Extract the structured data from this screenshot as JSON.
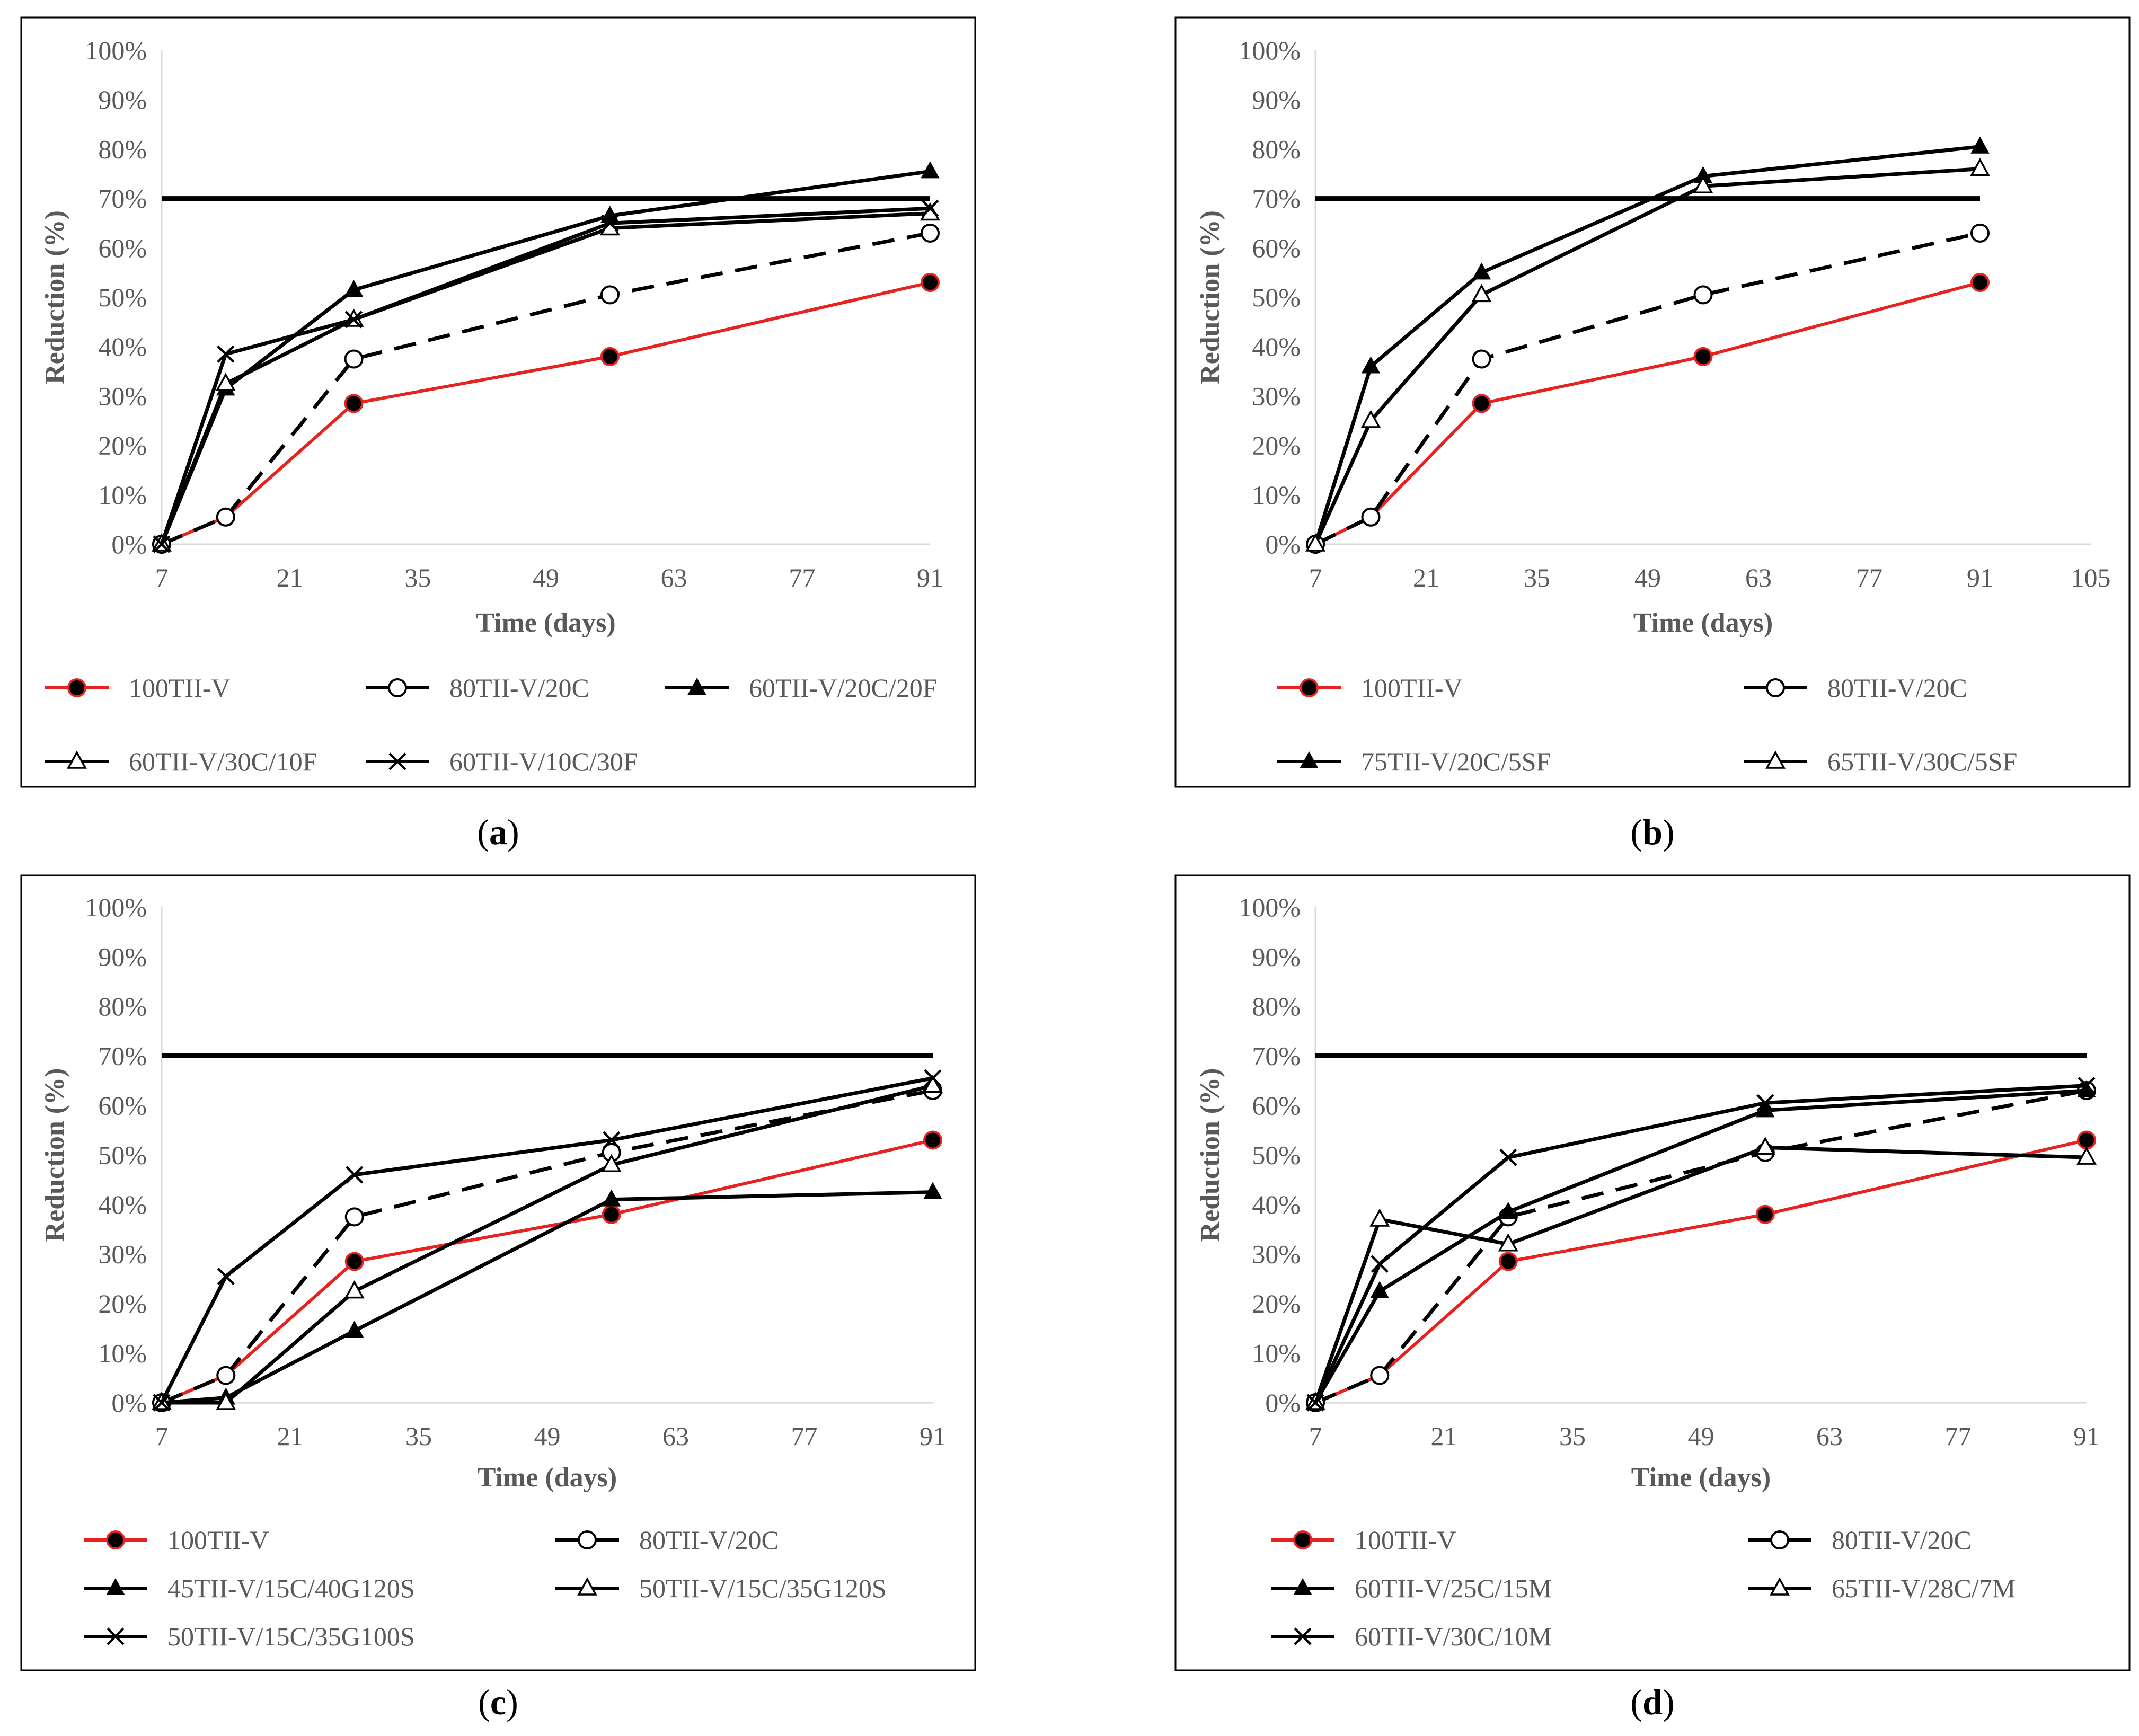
{
  "colors": {
    "red": "#e8231f",
    "black": "#000000",
    "axis_text": "#595959",
    "axis_line": "#d9d9d9",
    "frame": "#000000"
  },
  "chart_data": [
    {
      "id": "a",
      "type": "line",
      "caption_letter": "a",
      "xlabel": "Time (days)",
      "ylabel": "Reduction (%)",
      "xlim": [
        7,
        91
      ],
      "ylim": [
        0,
        100
      ],
      "xticks": [
        "7",
        "21",
        "35",
        "49",
        "63",
        "77",
        "91"
      ],
      "yticks": [
        "0%",
        "10%",
        "20%",
        "30%",
        "40%",
        "50%",
        "60%",
        "70%",
        "80%",
        "90%",
        "100%"
      ],
      "threshold": {
        "y": 70,
        "x": [
          7,
          91
        ]
      },
      "x": [
        7,
        14,
        28,
        56,
        91
      ],
      "series": [
        {
          "name": "100TII-V",
          "values": [
            0,
            5.5,
            28.5,
            38,
            53
          ],
          "color": "red",
          "marker": "filled-circle",
          "dash": false
        },
        {
          "name": "80TII-V/20C",
          "values": [
            0,
            5.5,
            37.5,
            50.5,
            63
          ],
          "color": "black",
          "marker": "open-circle",
          "dash": true
        },
        {
          "name": "60TII-V/20C/20F",
          "values": [
            0,
            31.5,
            51.5,
            66.5,
            75.5
          ],
          "color": "black",
          "marker": "filled-triangle",
          "dash": false
        },
        {
          "name": "60TII-V/30C/10F",
          "values": [
            0,
            32.5,
            45.5,
            64,
            67
          ],
          "color": "black",
          "marker": "open-triangle",
          "dash": false
        },
        {
          "name": "60TII-V/10C/30F",
          "values": [
            0,
            38.5,
            45.5,
            65,
            68
          ],
          "color": "black",
          "marker": "cross",
          "dash": false
        }
      ]
    },
    {
      "id": "b",
      "type": "line",
      "caption_letter": "b",
      "xlabel": "Time (days)",
      "ylabel": "Reduction (%)",
      "xlim": [
        7,
        105
      ],
      "ylim": [
        0,
        100
      ],
      "xticks": [
        "7",
        "21",
        "35",
        "49",
        "63",
        "77",
        "91",
        "105"
      ],
      "yticks": [
        "0%",
        "10%",
        "20%",
        "30%",
        "40%",
        "50%",
        "60%",
        "70%",
        "80%",
        "90%",
        "100%"
      ],
      "threshold": {
        "y": 70,
        "x": [
          7,
          91
        ]
      },
      "x": [
        7,
        14,
        28,
        56,
        91
      ],
      "series": [
        {
          "name": "100TII-V",
          "values": [
            0,
            5.5,
            28.5,
            38,
            53
          ],
          "color": "red",
          "marker": "filled-circle",
          "dash": false
        },
        {
          "name": "80TII-V/20C",
          "values": [
            0,
            5.5,
            37.5,
            50.5,
            63
          ],
          "color": "black",
          "marker": "open-circle",
          "dash": true
        },
        {
          "name": "75TII-V/20C/5SF",
          "values": [
            0,
            36,
            55,
            74.5,
            80.5
          ],
          "color": "black",
          "marker": "filled-triangle",
          "dash": false
        },
        {
          "name": "65TII-V/30C/5SF",
          "values": [
            0,
            25,
            50.5,
            72.5,
            76
          ],
          "color": "black",
          "marker": "open-triangle",
          "dash": false
        }
      ]
    },
    {
      "id": "c",
      "type": "line",
      "caption_letter": "c",
      "xlabel": "Time (days)",
      "ylabel": "Reduction (%)",
      "xlim": [
        7,
        91
      ],
      "ylim": [
        0,
        100
      ],
      "xticks": [
        "7",
        "21",
        "35",
        "49",
        "63",
        "77",
        "91"
      ],
      "yticks": [
        "0%",
        "10%",
        "20%",
        "30%",
        "40%",
        "50%",
        "60%",
        "70%",
        "80%",
        "90%",
        "100%"
      ],
      "threshold": {
        "y": 70,
        "x": [
          7,
          91
        ]
      },
      "x": [
        7,
        14,
        28,
        56,
        91
      ],
      "series": [
        {
          "name": "100TII-V",
          "values": [
            0,
            5.5,
            28.5,
            38,
            53
          ],
          "color": "red",
          "marker": "filled-circle",
          "dash": false
        },
        {
          "name": "80TII-V/20C",
          "values": [
            0,
            5.5,
            37.5,
            50.5,
            63
          ],
          "color": "black",
          "marker": "open-circle",
          "dash": true
        },
        {
          "name": "45TII-V/15C/40G120S",
          "values": [
            0,
            1,
            14.5,
            41,
            42.5
          ],
          "color": "black",
          "marker": "filled-triangle",
          "dash": false
        },
        {
          "name": "50TII-V/15C/35G120S",
          "values": [
            0,
            0,
            22.5,
            48,
            64
          ],
          "color": "black",
          "marker": "open-triangle",
          "dash": false
        },
        {
          "name": "50TII-V/15C/35G100S",
          "values": [
            0,
            25.5,
            46,
            53,
            65.5
          ],
          "color": "black",
          "marker": "cross",
          "dash": false
        }
      ]
    },
    {
      "id": "d",
      "type": "line",
      "caption_letter": "d",
      "xlabel": "Time (days)",
      "ylabel": "Reduction (%)",
      "xlim": [
        7,
        91
      ],
      "ylim": [
        0,
        100
      ],
      "xticks": [
        "7",
        "21",
        "35",
        "49",
        "63",
        "77",
        "91"
      ],
      "yticks": [
        "0%",
        "10%",
        "20%",
        "30%",
        "40%",
        "50%",
        "60%",
        "70%",
        "80%",
        "90%",
        "100%"
      ],
      "threshold": {
        "y": 70,
        "x": [
          7,
          91
        ]
      },
      "x": [
        7,
        14,
        28,
        56,
        91
      ],
      "series": [
        {
          "name": "100TII-V",
          "values": [
            0,
            5.5,
            28.5,
            38,
            53
          ],
          "color": "red",
          "marker": "filled-circle",
          "dash": false
        },
        {
          "name": "80TII-V/20C",
          "values": [
            0,
            5.5,
            37.5,
            50.5,
            63
          ],
          "color": "black",
          "marker": "open-circle",
          "dash": true
        },
        {
          "name": "60TII-V/25C/15M",
          "values": [
            0,
            22.5,
            38.5,
            59,
            63
          ],
          "color": "black",
          "marker": "filled-triangle",
          "dash": false
        },
        {
          "name": "65TII-V/28C/7M",
          "values": [
            0,
            37,
            32,
            51.5,
            49.5
          ],
          "color": "black",
          "marker": "open-triangle",
          "dash": false
        },
        {
          "name": "60TII-V/30C/10M",
          "values": [
            0,
            28,
            49.5,
            60.5,
            64
          ],
          "color": "black",
          "marker": "cross",
          "dash": false
        }
      ]
    }
  ]
}
